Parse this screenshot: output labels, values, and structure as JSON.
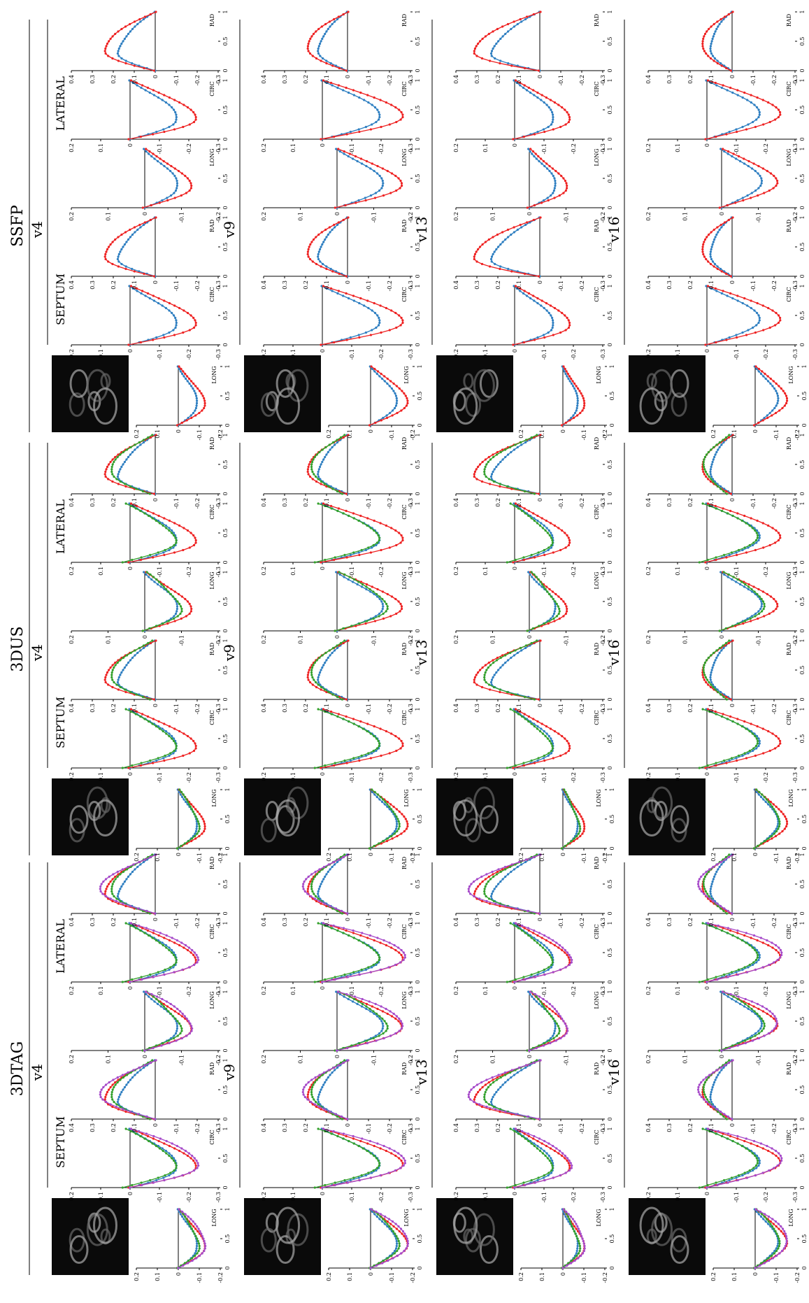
{
  "colors": {
    "blue": "#2f7fc1",
    "red": "#ee2222",
    "green": "#33a02c",
    "purple": "#a64ac9"
  },
  "sections": [
    {
      "title": "3DTAG",
      "regions": [
        "SEPTUM",
        "LATERAL"
      ],
      "nseries": 4,
      "thumb": "tag"
    },
    {
      "title": "3DUS",
      "regions": [
        "SEPTUM",
        "LATERAL"
      ],
      "nseries": 3,
      "thumb": "us"
    },
    {
      "title": "SSFP",
      "regions": [
        "SEPTUM",
        "LATERAL"
      ],
      "nseries": 2,
      "thumb": "ssfp"
    }
  ],
  "rows": [
    "v4",
    "v9",
    "v13",
    "v16"
  ],
  "chart_data": {
    "type": "line",
    "panels": [
      "LONG",
      "CIRC",
      "RAD",
      "LONG",
      "CIRC",
      "RAD"
    ],
    "x_ticks": [
      "0",
      "0.5",
      "1"
    ],
    "xlim": [
      0,
      1
    ],
    "y_axes": {
      "LONG": {
        "ylim": [
          -0.2,
          0.2
        ],
        "ticks": [
          "-0.2",
          "-0.1",
          "0",
          "0.1",
          "0.2"
        ]
      },
      "CIRC": {
        "ylim": [
          -0.3,
          0.2
        ],
        "ticks": [
          "-0.3",
          "-0.2",
          "-0.1",
          "0",
          "0.1",
          "0.2"
        ]
      },
      "RAD": {
        "ylim": [
          -0.3,
          0.4
        ],
        "ticks": [
          "-0.3",
          "-0.2",
          "-0.1",
          "0",
          "0.1",
          "0.2",
          "0.3",
          "0.4"
        ]
      }
    },
    "shapes": {
      "LONG": [
        {
          "peak": 0.35,
          "val": -0.1
        },
        {
          "peak": 0.4,
          "val": -0.14
        },
        {
          "peak": 0.33,
          "val": -0.08
        },
        {
          "peak": 0.45,
          "val": -0.12
        }
      ],
      "CIRC": [
        {
          "peak": 0.35,
          "val": -0.18
        },
        {
          "peak": 0.4,
          "val": -0.22
        },
        {
          "peak": 0.33,
          "val": -0.15
        },
        {
          "peak": 0.45,
          "val": -0.2
        }
      ],
      "RAD": [
        {
          "peak": 0.35,
          "val": 0.2
        },
        {
          "peak": 0.4,
          "val": 0.16
        },
        {
          "peak": 0.33,
          "val": 0.26
        },
        {
          "peak": 0.45,
          "val": 0.12
        }
      ]
    }
  }
}
